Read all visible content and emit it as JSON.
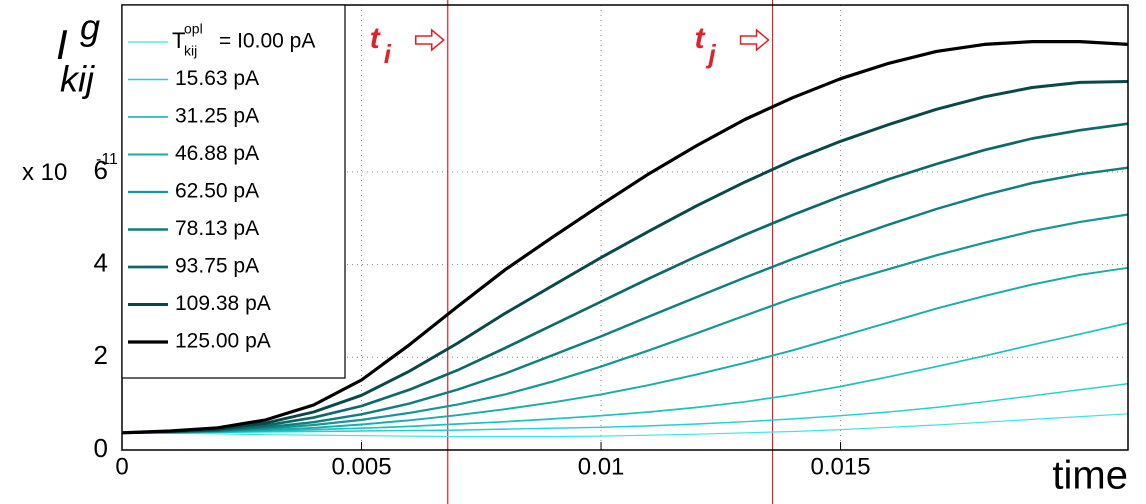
{
  "chart_data": {
    "type": "line",
    "y_label": {
      "text": "I",
      "sup": "g",
      "sub": "kij"
    },
    "x_label": "time",
    "y_multiplier": {
      "text": "x 10",
      "sup": "-11"
    },
    "legend_prefix": {
      "text": "T",
      "sup": "opl",
      "sub": "kij"
    },
    "x": [
      0,
      0.001,
      0.002,
      0.003,
      0.004,
      0.005,
      0.006,
      0.007,
      0.008,
      0.009,
      0.01,
      0.011,
      0.012,
      0.013,
      0.014,
      0.015,
      0.016,
      0.017,
      0.018,
      0.019,
      0.02,
      0.021
    ],
    "series": [
      {
        "name": "= I0.00 pA",
        "color": "#40e4e4",
        "values": [
          0.37,
          0.36,
          0.35,
          0.33,
          0.32,
          0.31,
          0.3,
          0.29,
          0.29,
          0.29,
          0.3,
          0.32,
          0.34,
          0.37,
          0.4,
          0.44,
          0.49,
          0.54,
          0.6,
          0.66,
          0.72,
          0.78
        ]
      },
      {
        "name": "15.63 pA",
        "color": "#22d0d0",
        "values": [
          0.37,
          0.37,
          0.38,
          0.39,
          0.4,
          0.41,
          0.42,
          0.43,
          0.45,
          0.47,
          0.49,
          0.52,
          0.56,
          0.61,
          0.67,
          0.74,
          0.82,
          0.92,
          1.04,
          1.17,
          1.3,
          1.43
        ]
      },
      {
        "name": "31.25 pA",
        "color": "#1fc0c0",
        "values": [
          0.37,
          0.38,
          0.39,
          0.41,
          0.44,
          0.47,
          0.51,
          0.56,
          0.61,
          0.67,
          0.74,
          0.82,
          0.92,
          1.04,
          1.19,
          1.37,
          1.58,
          1.8,
          2.03,
          2.27,
          2.5,
          2.74
        ]
      },
      {
        "name": "46.88 pA",
        "color": "#1aabab",
        "values": [
          0.37,
          0.38,
          0.4,
          0.43,
          0.48,
          0.55,
          0.64,
          0.75,
          0.88,
          1.03,
          1.2,
          1.4,
          1.63,
          1.88,
          2.15,
          2.45,
          2.75,
          3.05,
          3.32,
          3.57,
          3.78,
          3.93
        ]
      },
      {
        "name": "62.50 pA",
        "color": "#169696",
        "values": [
          0.37,
          0.38,
          0.41,
          0.46,
          0.54,
          0.65,
          0.8,
          0.98,
          1.2,
          1.48,
          1.8,
          2.15,
          2.52,
          2.9,
          3.27,
          3.6,
          3.9,
          4.2,
          4.47,
          4.72,
          4.92,
          5.08
        ]
      },
      {
        "name": "78.13 pA",
        "color": "#117e7e",
        "values": [
          0.37,
          0.39,
          0.42,
          0.49,
          0.6,
          0.77,
          1.0,
          1.3,
          1.65,
          2.05,
          2.45,
          2.88,
          3.3,
          3.72,
          4.12,
          4.5,
          4.86,
          5.2,
          5.5,
          5.76,
          5.95,
          6.09
        ]
      },
      {
        "name": "93.75 pA",
        "color": "#0d6868",
        "values": [
          0.37,
          0.39,
          0.43,
          0.53,
          0.7,
          0.95,
          1.3,
          1.72,
          2.2,
          2.7,
          3.2,
          3.7,
          4.18,
          4.64,
          5.07,
          5.47,
          5.84,
          6.17,
          6.47,
          6.72,
          6.9,
          7.04
        ]
      },
      {
        "name": "109.38 pA",
        "color": "#084848",
        "values": [
          0.37,
          0.4,
          0.45,
          0.58,
          0.82,
          1.18,
          1.7,
          2.3,
          2.95,
          3.55,
          4.15,
          4.72,
          5.27,
          5.78,
          6.25,
          6.66,
          7.02,
          7.35,
          7.62,
          7.82,
          7.93,
          7.95
        ]
      },
      {
        "name": "125.00 pA",
        "color": "#000000",
        "values": [
          0.37,
          0.41,
          0.48,
          0.65,
          0.97,
          1.51,
          2.27,
          3.09,
          3.89,
          4.6,
          5.29,
          5.96,
          6.57,
          7.13,
          7.6,
          8.01,
          8.34,
          8.6,
          8.75,
          8.81,
          8.81,
          8.75
        ]
      }
    ],
    "annotations": [
      {
        "x": 0.0068,
        "text": "t",
        "sub": "i",
        "color": "#e0202a"
      },
      {
        "x": 0.01358,
        "text": "t",
        "sub": "j",
        "color": "#e0202a"
      }
    ],
    "xlim": [
      0,
      0.021
    ],
    "ylim": [
      0,
      9.6
    ],
    "xticks": [
      0,
      0.005,
      0.01,
      0.015
    ],
    "yticks": [
      0,
      2,
      4,
      6
    ],
    "grid": true,
    "legend": "upper-left"
  }
}
